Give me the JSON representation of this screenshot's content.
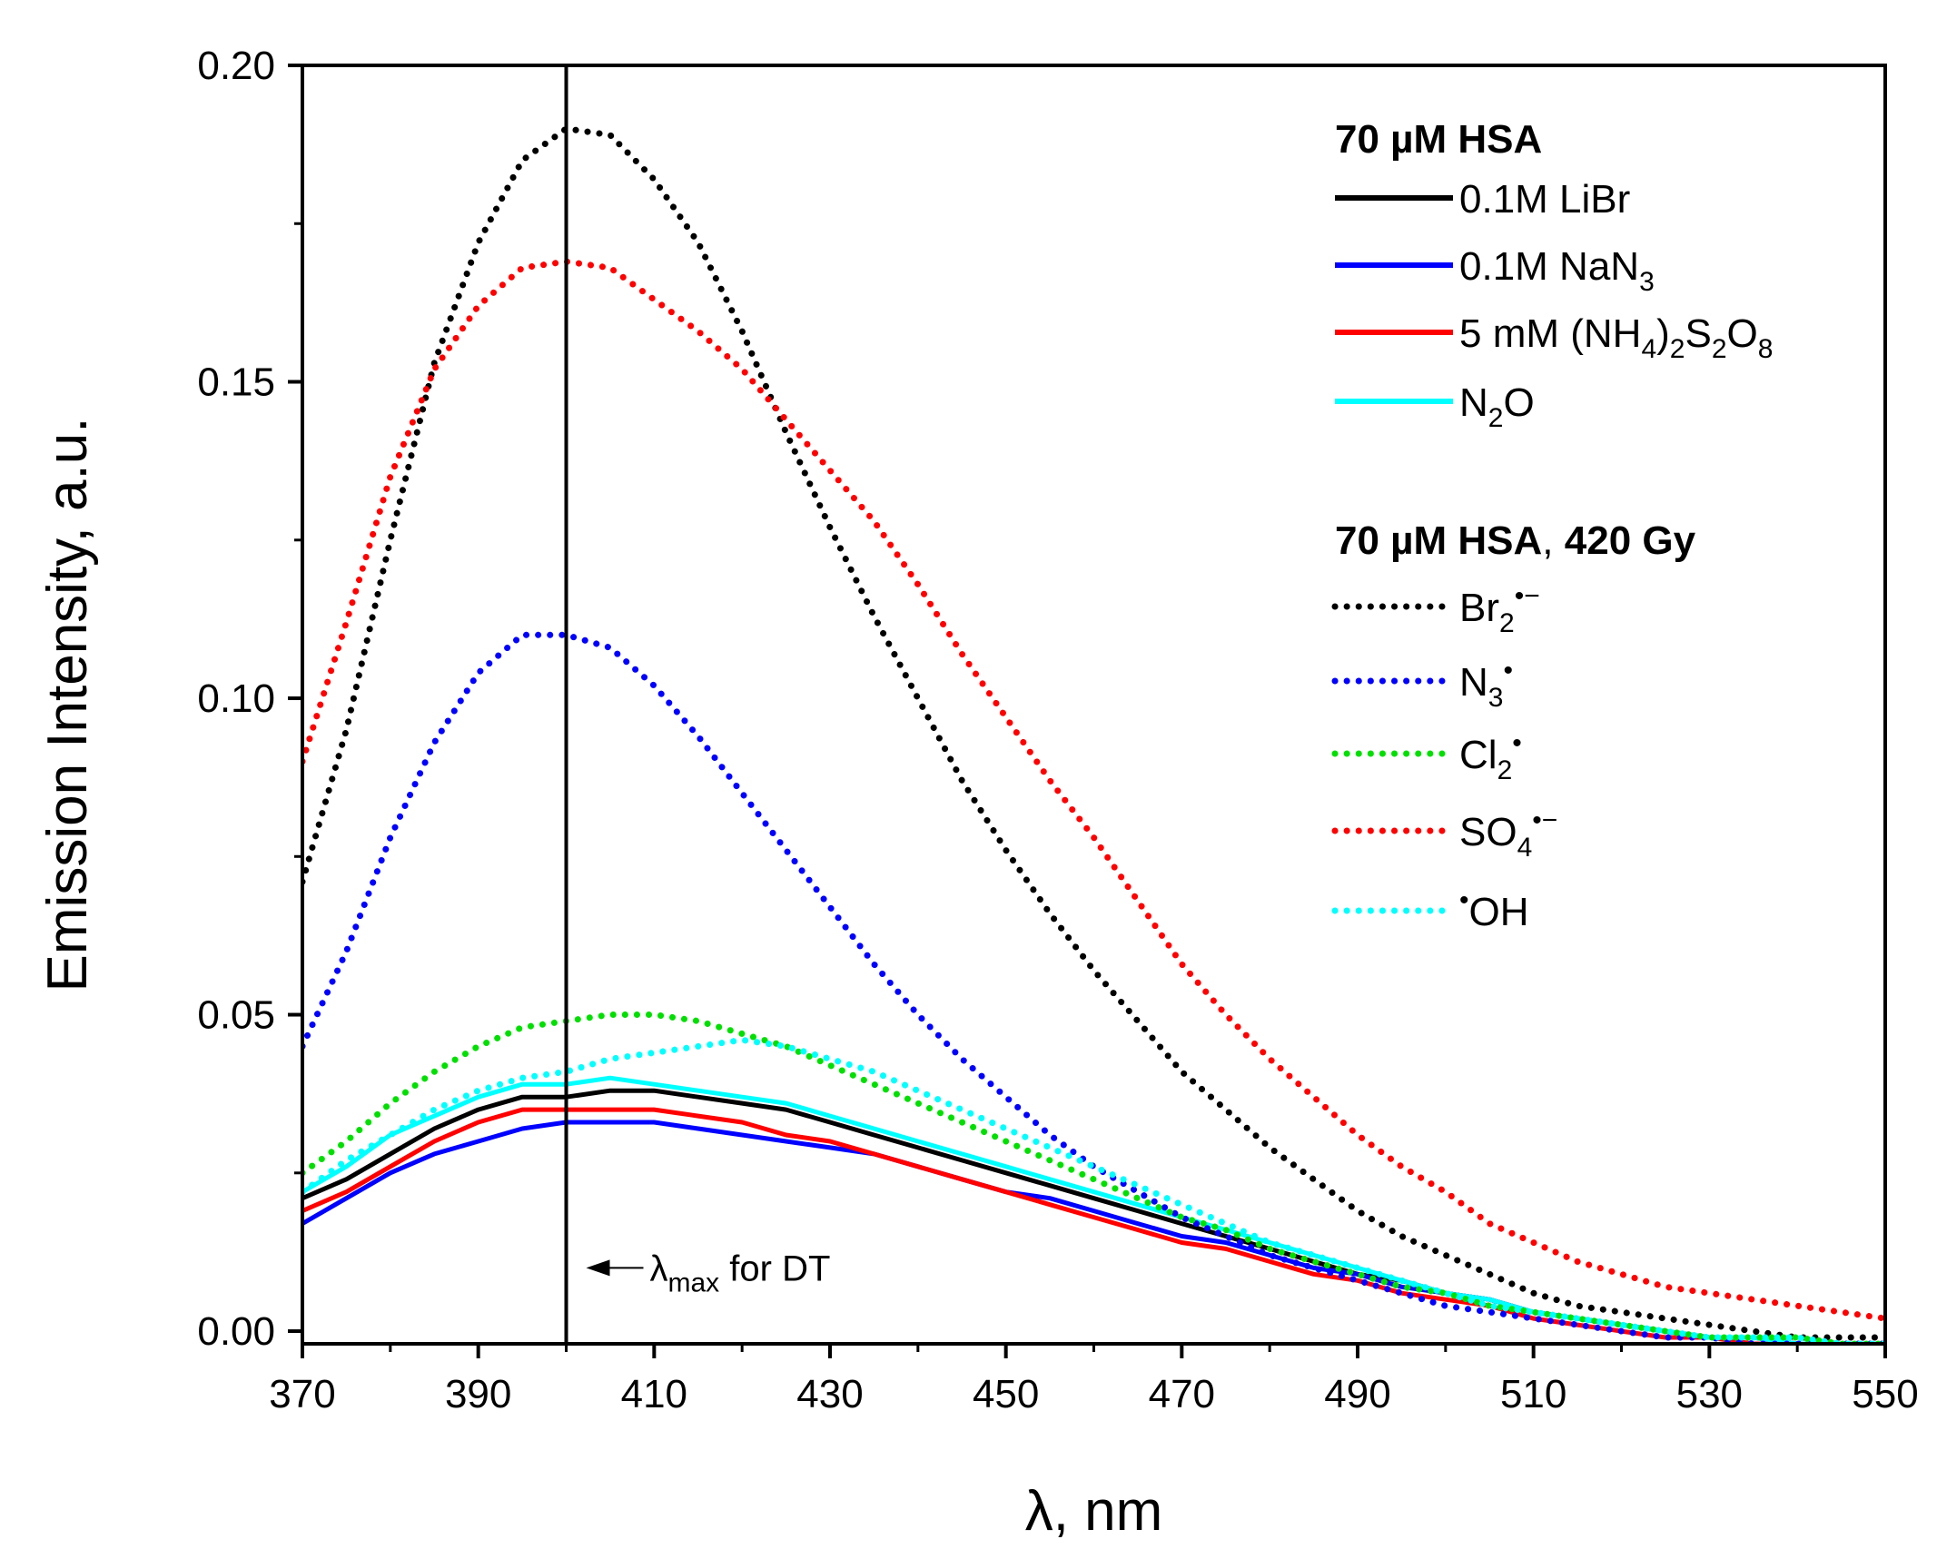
{
  "chart_data": {
    "type": "line",
    "xlabel": "λ, nm",
    "ylabel": "Emission Intensity, a.u.",
    "xlim": [
      370,
      550
    ],
    "ylim": [
      -0.002,
      0.2
    ],
    "xticks": [
      "370",
      "390",
      "410",
      "430",
      "450",
      "470",
      "490",
      "510",
      "530",
      "550"
    ],
    "yticks": [
      "0.00",
      "0.05",
      "0.10",
      "0.15",
      "0.20"
    ],
    "x_minor_step": 10,
    "y_minor_step": 0.025,
    "reference_line": {
      "x": 400
    },
    "annotation": {
      "x": 400,
      "y": 0.01,
      "main": "λ",
      "sub": "max",
      "rest": " for DT"
    },
    "legend": {
      "placement": "top-right",
      "group1_title": "70 µM HSA",
      "group2_title_bold": "70 µM HSA",
      "group2_title_sep": ", ",
      "group2_title_dose": "420 Gy"
    },
    "colors": {
      "black": "#000000",
      "blue": "#0000ff",
      "red": "#ff0000",
      "cyan": "#00ffff",
      "green": "#00e000"
    },
    "series": [
      {
        "name": "0.1M LiBr",
        "label_parts": [
          {
            "t": "0.1M LiBr"
          }
        ],
        "style": "solid",
        "color": "#000000",
        "x": [
          370,
          375,
          380,
          385,
          390,
          395,
          400,
          405,
          410,
          415,
          420,
          425,
          430,
          435,
          440,
          445,
          450,
          455,
          460,
          465,
          470,
          475,
          480,
          485,
          490,
          495,
          500,
          505,
          510,
          515,
          520,
          525,
          530,
          535,
          540,
          545,
          550
        ],
        "y": [
          0.021,
          0.024,
          0.028,
          0.032,
          0.035,
          0.037,
          0.037,
          0.038,
          0.038,
          0.037,
          0.036,
          0.035,
          0.033,
          0.031,
          0.029,
          0.027,
          0.025,
          0.023,
          0.021,
          0.019,
          0.017,
          0.015,
          0.013,
          0.011,
          0.009,
          0.008,
          0.006,
          0.005,
          0.003,
          0.002,
          0.001,
          0.0,
          -0.001,
          -0.001,
          -0.002,
          -0.002,
          -0.002
        ]
      },
      {
        "name": "0.1M NaN3",
        "label_parts": [
          {
            "t": "0.1M NaN"
          },
          {
            "t": "3",
            "sub": true
          }
        ],
        "style": "solid",
        "color": "#0000ff",
        "x": [
          370,
          375,
          380,
          385,
          390,
          395,
          400,
          405,
          410,
          415,
          420,
          425,
          430,
          435,
          440,
          445,
          450,
          455,
          460,
          465,
          470,
          475,
          480,
          485,
          490,
          495,
          500,
          505,
          510,
          515,
          520,
          525,
          530,
          535,
          540,
          545,
          550
        ],
        "y": [
          0.017,
          0.021,
          0.025,
          0.028,
          0.03,
          0.032,
          0.033,
          0.033,
          0.033,
          0.032,
          0.031,
          0.03,
          0.029,
          0.028,
          0.026,
          0.024,
          0.022,
          0.021,
          0.019,
          0.017,
          0.015,
          0.014,
          0.012,
          0.01,
          0.009,
          0.007,
          0.006,
          0.005,
          0.003,
          0.002,
          0.001,
          0.0,
          -0.001,
          -0.001,
          -0.002,
          -0.002,
          -0.002
        ]
      },
      {
        "name": "5 mM (NH4)2S2O8",
        "label_parts": [
          {
            "t": "5 mM (NH"
          },
          {
            "t": "4",
            "sub": true
          },
          {
            "t": ")"
          },
          {
            "t": "2",
            "sub": true
          },
          {
            "t": "S"
          },
          {
            "t": "2",
            "sub": true
          },
          {
            "t": "O"
          },
          {
            "t": "8",
            "sub": true
          }
        ],
        "style": "solid",
        "color": "#ff0000",
        "x": [
          370,
          375,
          380,
          385,
          390,
          395,
          400,
          405,
          410,
          415,
          420,
          425,
          430,
          435,
          440,
          445,
          450,
          455,
          460,
          465,
          470,
          475,
          480,
          485,
          490,
          495,
          500,
          505,
          510,
          515,
          520,
          525,
          530,
          535,
          540,
          545,
          550
        ],
        "y": [
          0.019,
          0.022,
          0.026,
          0.03,
          0.033,
          0.035,
          0.035,
          0.035,
          0.035,
          0.034,
          0.033,
          0.031,
          0.03,
          0.028,
          0.026,
          0.024,
          0.022,
          0.02,
          0.018,
          0.016,
          0.014,
          0.013,
          0.011,
          0.009,
          0.008,
          0.006,
          0.005,
          0.004,
          0.002,
          0.001,
          0.0,
          -0.001,
          -0.001,
          -0.002,
          -0.002,
          -0.002,
          -0.002
        ]
      },
      {
        "name": "N2O",
        "label_parts": [
          {
            "t": "N"
          },
          {
            "t": "2",
            "sub": true
          },
          {
            "t": "O"
          }
        ],
        "style": "solid",
        "color": "#00ffff",
        "x": [
          370,
          375,
          380,
          385,
          390,
          395,
          400,
          405,
          410,
          415,
          420,
          425,
          430,
          435,
          440,
          445,
          450,
          455,
          460,
          465,
          470,
          475,
          480,
          485,
          490,
          495,
          500,
          505,
          510,
          515,
          520,
          525,
          530,
          535,
          540,
          545,
          550
        ],
        "y": [
          0.022,
          0.026,
          0.031,
          0.034,
          0.037,
          0.039,
          0.039,
          0.04,
          0.039,
          0.038,
          0.037,
          0.036,
          0.034,
          0.032,
          0.03,
          0.028,
          0.026,
          0.024,
          0.022,
          0.02,
          0.018,
          0.016,
          0.014,
          0.012,
          0.01,
          0.008,
          0.006,
          0.005,
          0.003,
          0.002,
          0.001,
          0.0,
          -0.001,
          -0.001,
          -0.002,
          -0.002,
          -0.002
        ]
      },
      {
        "name": "Br2•−",
        "label_parts": [
          {
            "t": "Br"
          },
          {
            "t": "2",
            "sub": true
          },
          {
            "t": "•−",
            "sup": true
          }
        ],
        "style": "dotted",
        "color": "#000000",
        "x": [
          370,
          375,
          380,
          385,
          390,
          395,
          400,
          405,
          410,
          415,
          420,
          425,
          430,
          435,
          440,
          445,
          450,
          455,
          460,
          465,
          470,
          475,
          480,
          485,
          490,
          495,
          500,
          505,
          510,
          515,
          520,
          525,
          530,
          535,
          540,
          545,
          550
        ],
        "y": [
          0.071,
          0.095,
          0.125,
          0.153,
          0.172,
          0.185,
          0.19,
          0.189,
          0.182,
          0.172,
          0.158,
          0.142,
          0.127,
          0.113,
          0.1,
          0.087,
          0.076,
          0.066,
          0.057,
          0.049,
          0.041,
          0.035,
          0.029,
          0.024,
          0.019,
          0.015,
          0.012,
          0.009,
          0.006,
          0.004,
          0.003,
          0.002,
          0.001,
          0.0,
          -0.001,
          -0.001,
          -0.001
        ]
      },
      {
        "name": "N3•",
        "label_parts": [
          {
            "t": "N"
          },
          {
            "t": "3",
            "sub": true
          },
          {
            "t": "•",
            "sup": true
          }
        ],
        "style": "dotted",
        "color": "#0000ff",
        "x": [
          370,
          375,
          380,
          385,
          390,
          395,
          400,
          405,
          410,
          415,
          420,
          425,
          430,
          435,
          440,
          445,
          450,
          455,
          460,
          465,
          470,
          475,
          480,
          485,
          490,
          495,
          500,
          505,
          510,
          515,
          520,
          525,
          530,
          535,
          540,
          545,
          550
        ],
        "y": [
          0.045,
          0.06,
          0.078,
          0.093,
          0.104,
          0.11,
          0.11,
          0.108,
          0.102,
          0.094,
          0.085,
          0.076,
          0.067,
          0.058,
          0.05,
          0.043,
          0.037,
          0.031,
          0.026,
          0.022,
          0.018,
          0.015,
          0.012,
          0.01,
          0.008,
          0.006,
          0.004,
          0.003,
          0.002,
          0.001,
          0.0,
          -0.001,
          -0.001,
          -0.002,
          -0.002,
          -0.002,
          -0.002
        ]
      },
      {
        "name": "Cl2•",
        "label_parts": [
          {
            "t": "Cl"
          },
          {
            "t": "2",
            "sub": true
          },
          {
            "t": "•",
            "sup": true
          }
        ],
        "style": "dotted",
        "color": "#00e000",
        "x": [
          370,
          375,
          380,
          385,
          390,
          395,
          400,
          405,
          410,
          415,
          420,
          425,
          430,
          435,
          440,
          445,
          450,
          455,
          460,
          465,
          470,
          475,
          480,
          485,
          490,
          495,
          500,
          505,
          510,
          515,
          520,
          525,
          530,
          535,
          540,
          545,
          550
        ],
        "y": [
          0.025,
          0.03,
          0.036,
          0.041,
          0.045,
          0.048,
          0.049,
          0.05,
          0.05,
          0.049,
          0.047,
          0.045,
          0.042,
          0.039,
          0.036,
          0.033,
          0.03,
          0.027,
          0.024,
          0.021,
          0.018,
          0.016,
          0.013,
          0.011,
          0.009,
          0.007,
          0.006,
          0.004,
          0.003,
          0.002,
          0.001,
          0.0,
          -0.001,
          -0.001,
          -0.001,
          -0.002,
          -0.002
        ]
      },
      {
        "name": "SO4•−",
        "label_parts": [
          {
            "t": "SO"
          },
          {
            "t": "4",
            "sub": true
          },
          {
            "t": "•−",
            "sup": true
          }
        ],
        "style": "dotted",
        "color": "#ff0000",
        "x": [
          370,
          375,
          380,
          385,
          390,
          395,
          400,
          405,
          410,
          415,
          420,
          425,
          430,
          435,
          440,
          445,
          450,
          455,
          460,
          465,
          470,
          475,
          480,
          485,
          490,
          495,
          500,
          505,
          510,
          515,
          520,
          525,
          530,
          535,
          540,
          545,
          550
        ],
        "y": [
          0.09,
          0.112,
          0.135,
          0.152,
          0.162,
          0.168,
          0.169,
          0.168,
          0.163,
          0.158,
          0.152,
          0.144,
          0.136,
          0.128,
          0.118,
          0.107,
          0.097,
          0.087,
          0.078,
          0.068,
          0.058,
          0.05,
          0.043,
          0.037,
          0.031,
          0.026,
          0.022,
          0.017,
          0.014,
          0.011,
          0.009,
          0.007,
          0.006,
          0.005,
          0.004,
          0.003,
          0.002
        ]
      },
      {
        "name": "•OH",
        "label_parts": [
          {
            "t": "•",
            "sup": true
          },
          {
            "t": "OH"
          }
        ],
        "style": "dotted",
        "color": "#00ffff",
        "x": [
          370,
          375,
          380,
          385,
          390,
          395,
          400,
          405,
          410,
          415,
          420,
          425,
          430,
          435,
          440,
          445,
          450,
          455,
          460,
          465,
          470,
          475,
          480,
          485,
          490,
          495,
          500,
          505,
          510,
          515,
          520,
          525,
          530,
          535,
          540,
          545,
          550
        ],
        "y": [
          0.022,
          0.027,
          0.031,
          0.035,
          0.038,
          0.04,
          0.041,
          0.043,
          0.044,
          0.045,
          0.046,
          0.045,
          0.043,
          0.041,
          0.038,
          0.035,
          0.032,
          0.029,
          0.026,
          0.023,
          0.02,
          0.017,
          0.014,
          0.012,
          0.01,
          0.008,
          0.006,
          0.004,
          0.003,
          0.002,
          0.001,
          0.0,
          -0.001,
          -0.001,
          -0.001,
          -0.002,
          -0.002
        ]
      }
    ]
  }
}
